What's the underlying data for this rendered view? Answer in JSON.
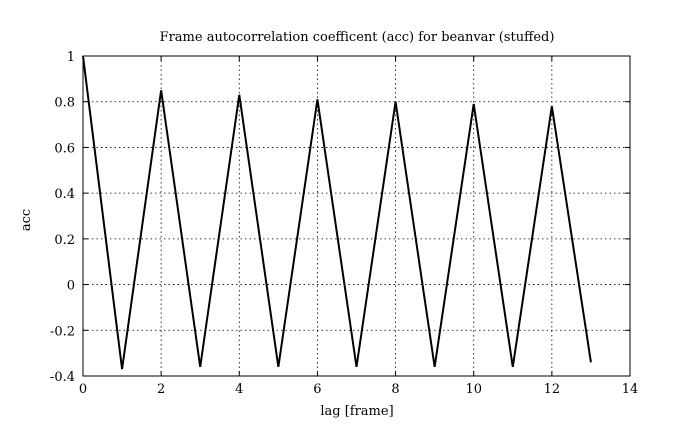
{
  "chart_data": {
    "type": "line",
    "title": "Frame autocorrelation coefficent (acc) for beanvar (stuffed)",
    "xlabel": "lag [frame]",
    "ylabel": "acc",
    "xlim": [
      0,
      14
    ],
    "ylim": [
      -0.4,
      1
    ],
    "xticks": [
      0,
      2,
      4,
      6,
      8,
      10,
      12,
      14
    ],
    "yticks": [
      -0.4,
      -0.2,
      0,
      0.2,
      0.4,
      0.6,
      0.8,
      1
    ],
    "xtick_labels": [
      "0",
      "2",
      "4",
      "6",
      "8",
      "10",
      "12",
      "14"
    ],
    "ytick_labels": [
      "-0.4",
      "-0.2",
      "0",
      "0.2",
      "0.4",
      "0.6",
      "0.8",
      "1"
    ],
    "grid": true,
    "series": [
      {
        "color": "#000000",
        "x": [
          0,
          1,
          2,
          3,
          4,
          5,
          6,
          7,
          8,
          9,
          10,
          11,
          12,
          13
        ],
        "y": [
          1.0,
          -0.37,
          0.85,
          -0.36,
          0.83,
          -0.36,
          0.81,
          -0.36,
          0.8,
          -0.36,
          0.79,
          -0.36,
          0.78,
          -0.34
        ]
      }
    ]
  }
}
